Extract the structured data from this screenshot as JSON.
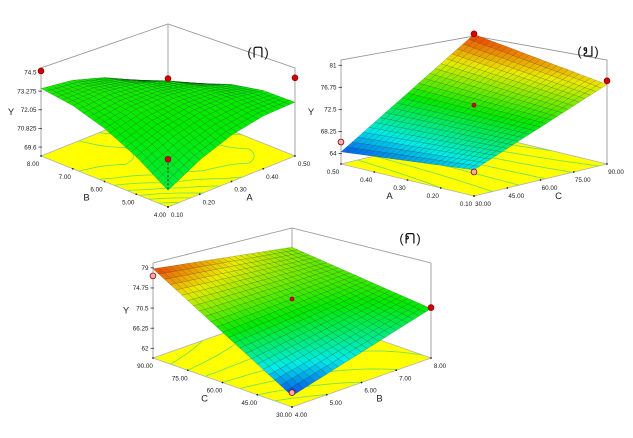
{
  "figure": {
    "background": "#ffffff",
    "description": "Three 3D response-surface plots (RSM) labelled with Thai letters"
  },
  "chart_data": [
    {
      "type": "surface3d",
      "panel_label": "(ก)",
      "response_label": "Y",
      "z_ticks": [
        "69.6",
        "70.825",
        "72.05",
        "73.275",
        "74.5"
      ],
      "left_axis": {
        "label": "B",
        "ticks": [
          "8.00",
          "7.00",
          "6.00",
          "5.00",
          "4.00"
        ]
      },
      "right_axis": {
        "label": "A",
        "ticks": [
          "0.10",
          "0.20",
          "0.30",
          "0.40",
          "0.50"
        ]
      },
      "z_grid": [
        [
          70.1,
          71.26,
          72.05,
          72.48,
          72.55
        ],
        [
          71.48,
          72.28,
          72.71,
          72.78,
          72.48
        ],
        [
          72.5,
          72.93,
          73.0,
          72.71,
          72.05
        ],
        [
          73.16,
          73.23,
          72.93,
          72.28,
          71.26
        ],
        [
          73.45,
          73.16,
          72.5,
          71.48,
          70.1
        ]
      ],
      "color_domain": [
        55,
        90
      ],
      "floor_color": "#ffff00",
      "contour_color": "#7de05a",
      "design_points": [
        {
          "u": 0,
          "v": 1,
          "z": 74.6,
          "style": "solid"
        },
        {
          "u": 1,
          "v": 1,
          "z": 70.75,
          "style": "solid"
        },
        {
          "u": 1,
          "v": 0,
          "z": 74.15,
          "style": "solid"
        },
        {
          "u": 0,
          "v": 0,
          "z": 72.15,
          "style": "solid",
          "drop_to_surface": true
        }
      ]
    },
    {
      "type": "surface3d",
      "panel_label": "(ข)",
      "response_label": "Y",
      "z_ticks": [
        "64",
        "68.25",
        "72.5",
        "76.75",
        "81"
      ],
      "left_axis": {
        "label": "A",
        "ticks": [
          "0.50",
          "0.40",
          "0.30",
          "0.20",
          "0.10"
        ]
      },
      "right_axis": {
        "label": "C",
        "ticks": [
          "30.00",
          "45.00",
          "60.00",
          "75.00",
          "90.00"
        ]
      },
      "z_grid": [
        [
          67.0,
          69.58,
          72.15,
          74.73,
          77.3
        ],
        [
          66.33,
          69.29,
          72.26,
          75.22,
          78.18
        ],
        [
          65.65,
          69.0,
          72.35,
          75.7,
          79.05
        ],
        [
          64.98,
          68.72,
          72.46,
          76.2,
          79.93
        ],
        [
          64.3,
          68.43,
          72.55,
          76.68,
          80.8
        ]
      ],
      "color_domain": [
        62.5,
        82
      ],
      "floor_color": "#ffff00",
      "contour_color": "#7de05a",
      "design_points": [
        {
          "u": 1,
          "v": 1,
          "z": 80.9,
          "style": "solid"
        },
        {
          "u": 1,
          "v": 0,
          "z": 78.0,
          "style": "solid"
        },
        {
          "u": 0,
          "v": 1,
          "z": 66.2,
          "style": "ring"
        },
        {
          "u": 0,
          "v": 0,
          "z": 66.6,
          "style": "ring"
        },
        {
          "u": 0.5,
          "v": 0.5,
          "z": 73.3,
          "style": "center"
        }
      ]
    },
    {
      "type": "surface3d",
      "panel_label": "(ค)",
      "response_label": "Y",
      "z_ticks": [
        "62",
        "66.25",
        "70.5",
        "74.75",
        "79"
      ],
      "left_axis": {
        "label": "C",
        "ticks": [
          "90.00",
          "75.00",
          "60.00",
          "45.00",
          "30.00"
        ]
      },
      "right_axis": {
        "label": "B",
        "ticks": [
          "4.00",
          "5.00",
          "6.00",
          "7.00",
          "8.00"
        ]
      },
      "z_grid": [
        [
          62.3,
          64.33,
          66.35,
          68.38,
          70.4
        ],
        [
          66.43,
          67.58,
          68.74,
          69.89,
          71.05
        ],
        [
          70.55,
          70.84,
          71.13,
          71.41,
          71.7
        ],
        [
          74.68,
          74.09,
          73.51,
          72.93,
          72.35
        ],
        [
          78.8,
          77.35,
          75.9,
          74.45,
          73.0
        ]
      ],
      "color_domain": [
        61,
        80
      ],
      "floor_color": "#ffff00",
      "contour_color": "#7de05a",
      "design_points": [
        {
          "u": 0,
          "v": 1,
          "z": 77.3,
          "style": "ring"
        },
        {
          "u": 1,
          "v": 0,
          "z": 70.6,
          "style": "solid"
        },
        {
          "u": 0,
          "v": 0,
          "z": 63.0,
          "style": "ring"
        },
        {
          "u": 0.5,
          "v": 0.5,
          "z": 72.4,
          "style": "center"
        }
      ]
    }
  ]
}
